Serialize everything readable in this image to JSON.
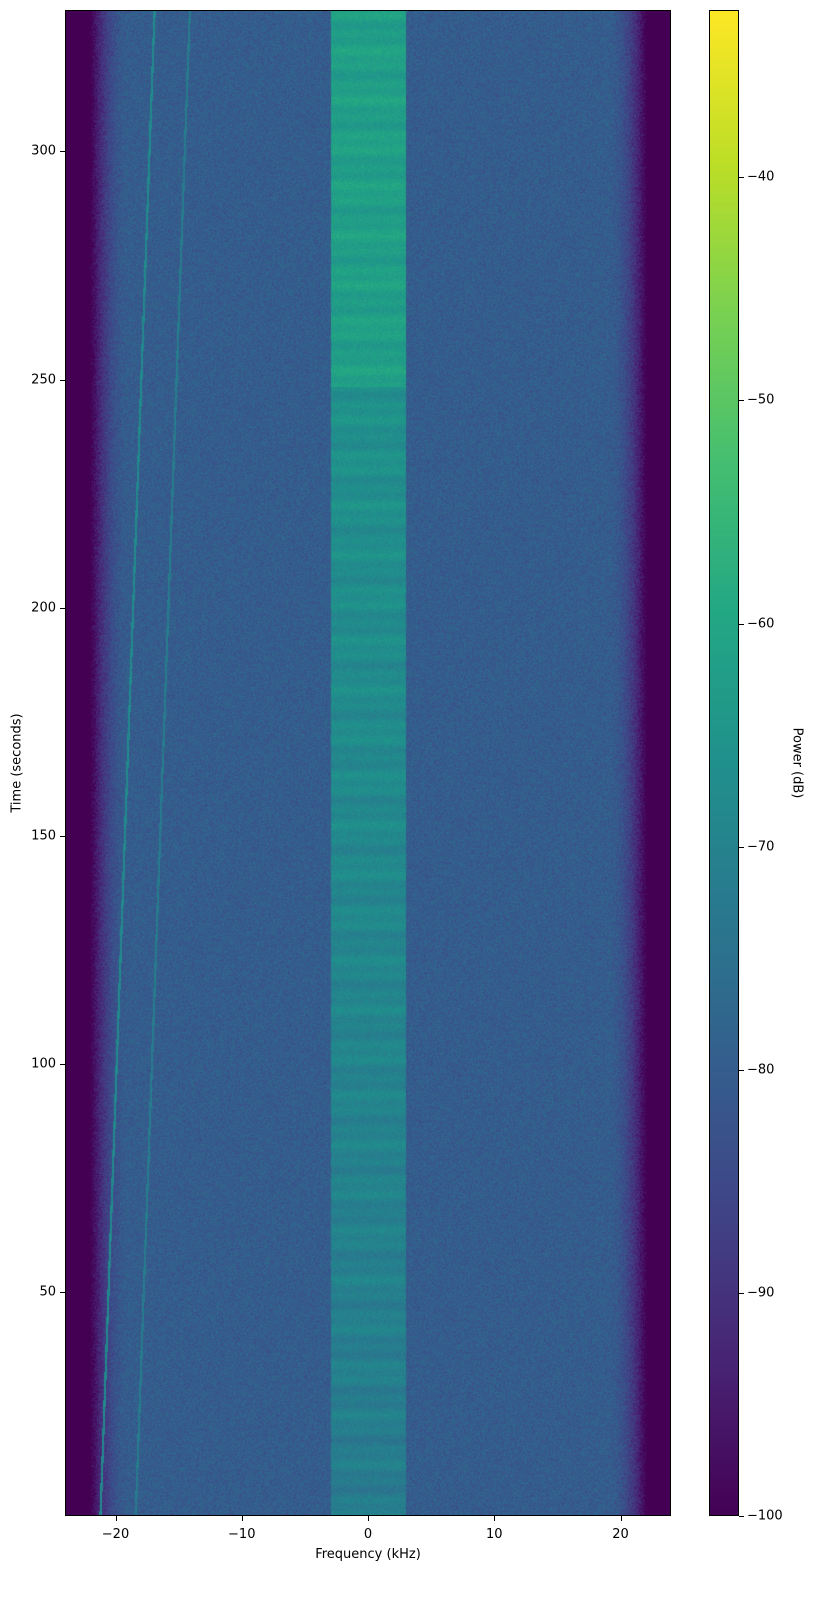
{
  "chart_data": {
    "type": "heatmap",
    "subtype": "spectrogram",
    "title": "",
    "xlabel": "Frequency (kHz)",
    "ylabel": "Time (seconds)",
    "xlim": [
      -24,
      24
    ],
    "ylim": [
      1,
      331
    ],
    "xticks": [
      -20,
      -10,
      0,
      10,
      20
    ],
    "xtick_labels": [
      "−20",
      "−10",
      "0",
      "10",
      "20"
    ],
    "yticks": [
      50,
      100,
      150,
      200,
      250,
      300
    ],
    "ytick_labels": [
      "50",
      "100",
      "150",
      "200",
      "250",
      "300"
    ],
    "colorbar": {
      "label": "Power (dB)",
      "colormap": "viridis",
      "range": [
        -100,
        -32.5
      ],
      "ticks": [
        -100,
        -90,
        -80,
        -70,
        -60,
        -50,
        -40
      ],
      "tick_labels": [
        "−100",
        "−90",
        "−80",
        "−70",
        "−60",
        "−50",
        "−40"
      ]
    },
    "noise_floor_db": -80,
    "band_edge_khz": 22,
    "central_band": {
      "freq_range_khz": [
        -3,
        3
      ],
      "power_db_at_start": -72,
      "power_db_at_end": -62
    },
    "drifting_tones": [
      {
        "freq_khz_start": -21.3,
        "freq_khz_end": -17.0,
        "power_db": -68
      },
      {
        "freq_khz_start": -18.5,
        "freq_khz_end": -14.2,
        "power_db": -72
      }
    ],
    "grid": false
  }
}
